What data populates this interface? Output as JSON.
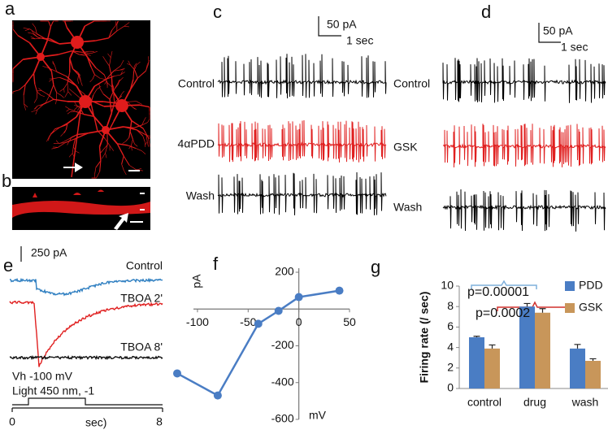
{
  "panel_labels": [
    "a",
    "b",
    "c",
    "d",
    "e",
    "f",
    "g"
  ],
  "panel_c": {
    "scale_current": "50 pA",
    "scale_time": "1 sec",
    "traces": [
      "Control",
      "4αPDD",
      "Wash"
    ]
  },
  "panel_d": {
    "scale_current": "50 pA",
    "scale_time": "1 sec",
    "traces": [
      "Control",
      "GSK",
      "Wash"
    ]
  },
  "panel_e": {
    "scale_current": "250 pA",
    "traces": [
      "Control",
      "TBOA 2'",
      "TBOA 8'"
    ],
    "holding": "Vh -100 mV",
    "stimulus": "Light 450 nm, -1",
    "x_tick_labels": [
      "0",
      "8"
    ],
    "x_unit": "sec)"
  },
  "chart_data": [
    {
      "type": "line",
      "xlabel": "mV",
      "ylabel": "pA",
      "x": [
        -120,
        -80,
        -40,
        -20,
        0,
        40
      ],
      "values": [
        -350,
        -470,
        -80,
        -10,
        65,
        100
      ],
      "color": "#4a7dc4",
      "xlim": [
        -120,
        50
      ],
      "ylim": [
        -600,
        200
      ],
      "xticks": [
        -100,
        -50,
        0,
        50
      ],
      "yticks": [
        200,
        -200,
        -400,
        -600
      ]
    },
    {
      "type": "bar",
      "ylabel": "Firing rate (/ sec)",
      "categories": [
        "control",
        "drug",
        "wash"
      ],
      "series": [
        {
          "name": "PDD",
          "color": "#4a7dc4",
          "values": [
            5.0,
            8.0,
            3.9
          ],
          "errors": [
            0.1,
            0.3,
            0.4
          ]
        },
        {
          "name": "GSK",
          "color": "#c8965a",
          "values": [
            3.9,
            7.4,
            2.7
          ],
          "errors": [
            0.35,
            0.4,
            0.2
          ]
        }
      ],
      "ylim": [
        0,
        10
      ],
      "yticks": [
        0,
        2,
        4,
        6,
        8,
        10
      ],
      "legend": "right",
      "annotations": [
        "p=0.00001",
        "p=0.0002"
      ]
    }
  ]
}
